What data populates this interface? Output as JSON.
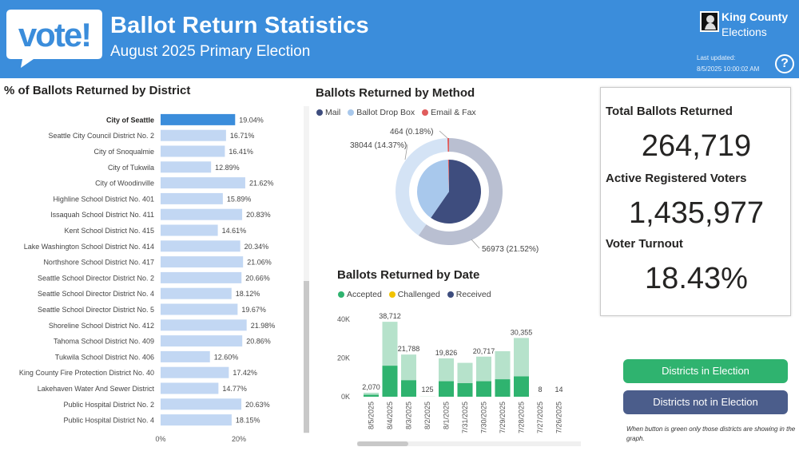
{
  "header": {
    "logo_text": "vote!",
    "title": "Ballot Return Statistics",
    "subtitle": "August 2025 Primary Election",
    "org_line1": "King County",
    "org_line2": "Elections",
    "last_updated_label": "Last updated:",
    "last_updated_value": "8/5/2025 10:00:02 AM",
    "help_symbol": "?"
  },
  "district_section": {
    "title": "% of Ballots Returned by District"
  },
  "method_section": {
    "title": "Ballots Returned by Method"
  },
  "date_section": {
    "title": "Ballots Returned by Date"
  },
  "colors": {
    "header": "#3b8ddb",
    "district_bar": "#c2d7f3",
    "district_bar_selected": "#3b8ddb",
    "mail": "#3e4d7e",
    "drop_box": "#a8c8ec",
    "email_fax": "#e05c5c",
    "accepted": "#2fb36f",
    "challenged": "#f2c300",
    "received": "#3e4d7e",
    "accepted_light": "#b6e2cb"
  },
  "kpis": {
    "total_label": "Total Ballots Returned",
    "total_value": "264,719",
    "voters_label": "Active Registered Voters",
    "voters_value": "1,435,977",
    "turnout_label": "Voter Turnout",
    "turnout_value": "18.43%"
  },
  "buttons": {
    "in_election": "Districts in Election",
    "not_in_election": "Districts not in Election",
    "note": "When button is green only those districts are showing in the graph."
  },
  "chart_data": [
    {
      "type": "bar",
      "orientation": "horizontal",
      "categories": [
        "City of Seattle",
        "Seattle City Council District No. 2",
        "City of Snoqualmie",
        "City of Tukwila",
        "City of Woodinville",
        "Highline School District No. 401",
        "Issaquah School District No. 411",
        "Kent School District No. 415",
        "Lake Washington School District No. 414",
        "Northshore School District No. 417",
        "Seattle School Director District No. 2",
        "Seattle School Director District No. 4",
        "Seattle School Director District No. 5",
        "Shoreline School District No. 412",
        "Tahoma School District No. 409",
        "Tukwila School District No. 406",
        "King County Fire Protection District No. 40",
        "Lakehaven Water And Sewer District",
        "Public Hospital District No. 2",
        "Public Hospital District No. 4"
      ],
      "values": [
        19.04,
        16.71,
        16.41,
        12.89,
        21.62,
        15.89,
        20.83,
        14.61,
        20.34,
        21.06,
        20.66,
        18.12,
        19.67,
        21.98,
        20.86,
        12.6,
        17.42,
        14.77,
        20.63,
        18.15
      ],
      "data_labels": [
        "19.04%",
        "16.71%",
        "16.41%",
        "12.89%",
        "21.62%",
        "15.89%",
        "20.83%",
        "14.61%",
        "20.34%",
        "21.06%",
        "20.66%",
        "18.12%",
        "19.67%",
        "21.98%",
        "20.86%",
        "12.60%",
        "17.42%",
        "14.77%",
        "20.63%",
        "18.15%"
      ],
      "selected": "City of Seattle",
      "xticks": [
        "0%",
        "20%"
      ],
      "xlim": [
        0,
        20
      ]
    },
    {
      "type": "pie",
      "variant": "donut",
      "legend": [
        "Mail",
        "Ballot Drop Box",
        "Email & Fax"
      ],
      "outer_ring": [
        {
          "label": "Mail",
          "value": 56973,
          "data_label": "56973 (21.52%)"
        },
        {
          "label": "Ballot Drop Box",
          "value": 38044,
          "data_label": "38044 (14.37%)"
        },
        {
          "label": "Email & Fax",
          "value": 464,
          "data_label": "464 (0.18%)"
        }
      ],
      "inner_pie": [
        {
          "label": "Mail",
          "value": 56973
        },
        {
          "label": "Ballot Drop Box",
          "value": 38044
        },
        {
          "label": "Email & Fax",
          "value": 464
        }
      ]
    },
    {
      "type": "bar",
      "stacked": true,
      "legend": [
        "Accepted",
        "Challenged",
        "Received"
      ],
      "categories": [
        "8/5/2025",
        "8/4/2025",
        "8/3/2025",
        "8/2/2025",
        "8/1/2025",
        "7/31/2025",
        "7/30/2025",
        "7/29/2025",
        "7/28/2025",
        "7/27/2025",
        "7/26/2025"
      ],
      "series": [
        {
          "name": "Accepted",
          "values": [
            1000,
            16000,
            8500,
            0,
            8000,
            7000,
            8000,
            9000,
            10500,
            0,
            0
          ]
        },
        {
          "name": "Received",
          "values": [
            1070,
            22712,
            13288,
            125,
            11826,
            10500,
            12717,
            14500,
            19855,
            8,
            14
          ]
        }
      ],
      "totals": [
        2070,
        38712,
        21788,
        125,
        19826,
        17500,
        20717,
        23500,
        30355,
        8,
        14
      ],
      "total_labels": [
        "2,070",
        "38,712",
        "21,788",
        "125",
        "19,826",
        "",
        "20,717",
        "",
        "30,355",
        "8",
        "14"
      ],
      "yticks": [
        "0K",
        "20K",
        "40K"
      ],
      "ylim": [
        0,
        40000
      ]
    }
  ]
}
